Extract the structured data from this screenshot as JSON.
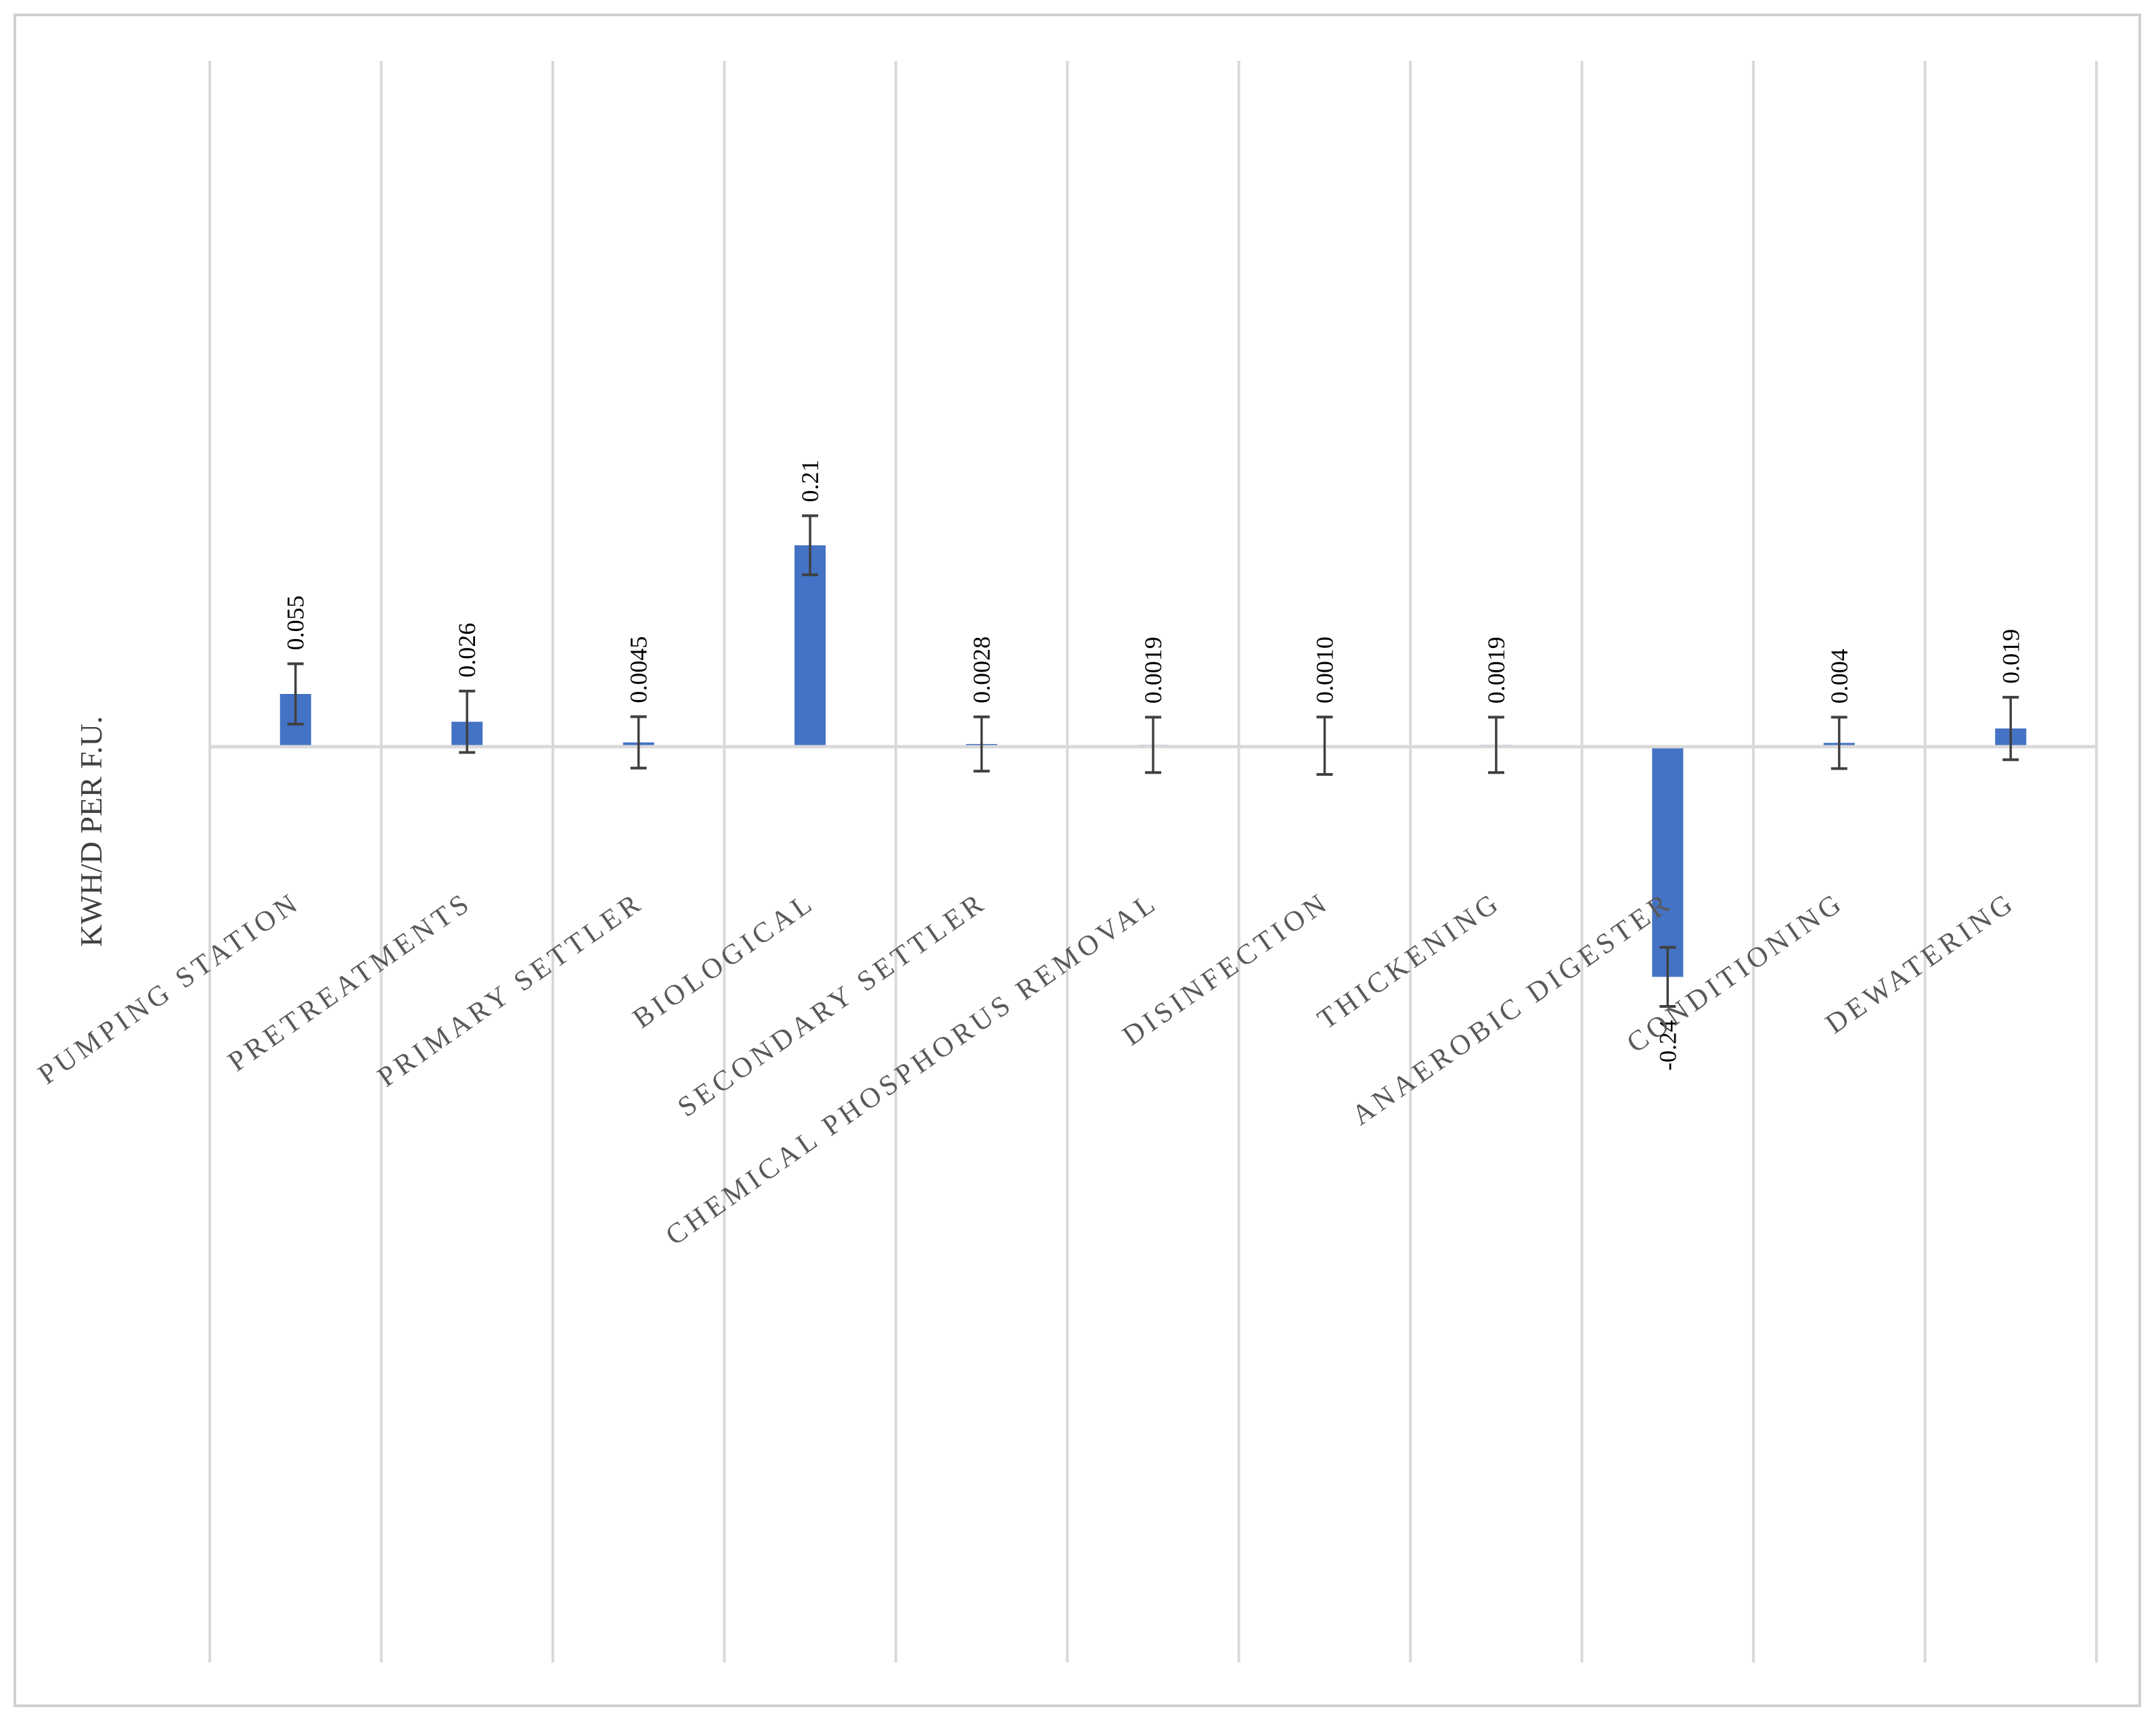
{
  "chart_data": {
    "type": "bar",
    "title": "",
    "xlabel": "",
    "ylabel": "KWH/D PER F.U.",
    "categories": [
      "PUMPING STATION",
      "PRETREATMENTS",
      "PRIMARY SETTLER",
      "BIOLOGICAL",
      "SECONDARY SETTLER",
      "CHEMICAL PHOSPHORUS REMOVAL",
      "DISINFECTION",
      "THICKENING",
      "ANAEROBIC DIGESTER",
      "CONDITIONING",
      "DEWATERING"
    ],
    "values": [
      0.055,
      0.026,
      0.0045,
      0.21,
      0.0028,
      0.0019,
      0.001,
      0.0019,
      -0.24,
      0.004,
      0.019
    ],
    "labels": [
      "0.055",
      "0.026",
      "0.0045",
      "0.21",
      "0.0028",
      "0.0019",
      "0.0010",
      "0.0019",
      "-0.24",
      "0.004",
      "0.019"
    ],
    "error_low": [
      0.0315,
      0.032,
      0.0268,
      0.0308,
      0.0283,
      0.0289,
      0.0299,
      0.0289,
      0.0308,
      0.0268,
      0.0326
    ],
    "error_high": [
      0.0315,
      0.032,
      0.0268,
      0.0308,
      0.0283,
      0.0289,
      0.0299,
      0.0289,
      0.0308,
      0.0268,
      0.0326
    ],
    "ylim": [
      -0.4,
      0.3
    ],
    "grid": "vertical",
    "legend": "none",
    "colors": {
      "bar": "#4472c4",
      "error_bar": "#404040",
      "grid": "#d9d9d9",
      "frame": "#d0d0d0"
    }
  }
}
